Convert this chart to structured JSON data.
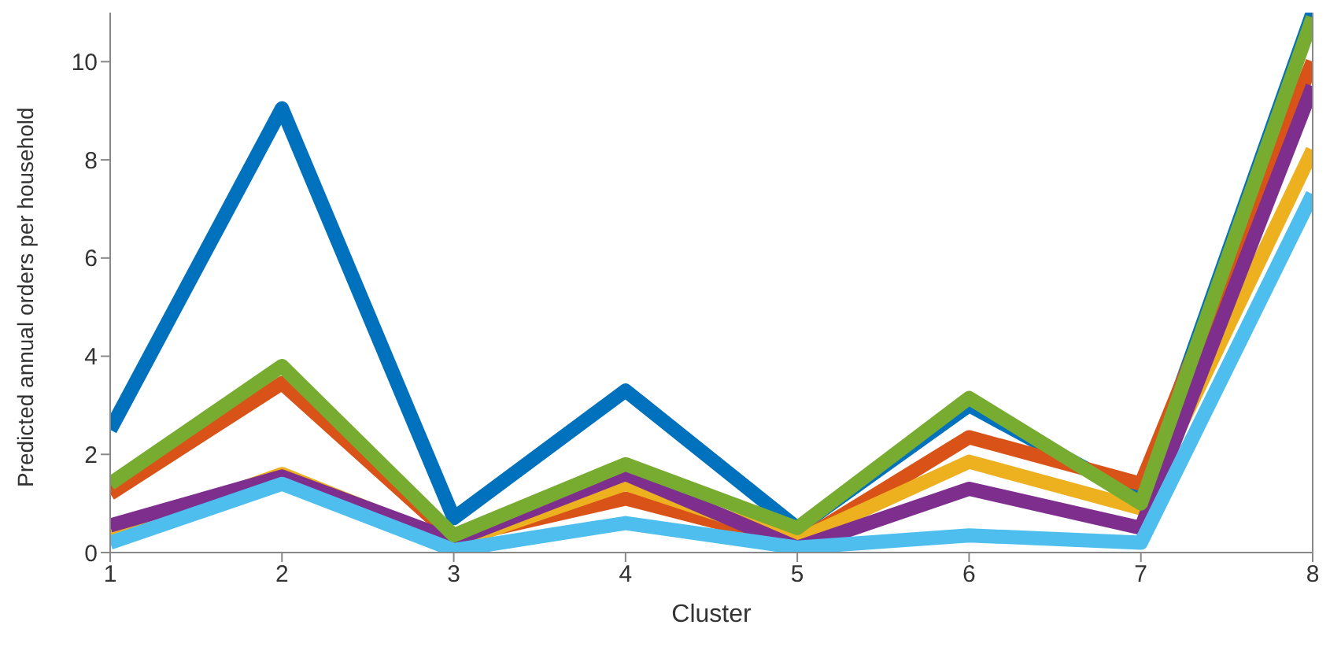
{
  "chart_data": {
    "type": "line",
    "xlabel": "Cluster",
    "ylabel": "Predicted annual orders per household",
    "x": [
      1,
      2,
      3,
      4,
      5,
      6,
      7,
      8
    ],
    "series": [
      {
        "color": "#0072bd",
        "values": [
          2.5,
          9.05,
          0.7,
          3.3,
          0.5,
          3.0,
          1.1,
          11
        ]
      },
      {
        "color": "#d95319",
        "values": [
          1.2,
          3.45,
          0.3,
          1.1,
          0.2,
          2.35,
          1.4,
          10.0
        ]
      },
      {
        "color": "#edb120",
        "values": [
          0.35,
          1.6,
          0.2,
          1.4,
          0.25,
          1.85,
          0.9,
          8.2
        ]
      },
      {
        "color": "#7e2f8e",
        "values": [
          0.55,
          1.55,
          0.25,
          1.6,
          0.1,
          1.3,
          0.5,
          9.5
        ]
      },
      {
        "color": "#77ac30",
        "values": [
          1.4,
          3.8,
          0.35,
          1.8,
          0.5,
          3.15,
          1.0,
          10.9
        ]
      },
      {
        "color": "#4dbeee",
        "values": [
          0.2,
          1.4,
          0.05,
          0.6,
          0.1,
          0.35,
          0.2,
          7.3
        ]
      }
    ],
    "xlim": [
      1,
      8
    ],
    "xticks": [
      1,
      2,
      3,
      4,
      5,
      6,
      7,
      8
    ],
    "ylim": [
      0,
      11
    ],
    "yticks": [
      0,
      2,
      4,
      6,
      8,
      10
    ],
    "grid": false,
    "legend": false,
    "marker": "none",
    "line_style": "solid"
  }
}
